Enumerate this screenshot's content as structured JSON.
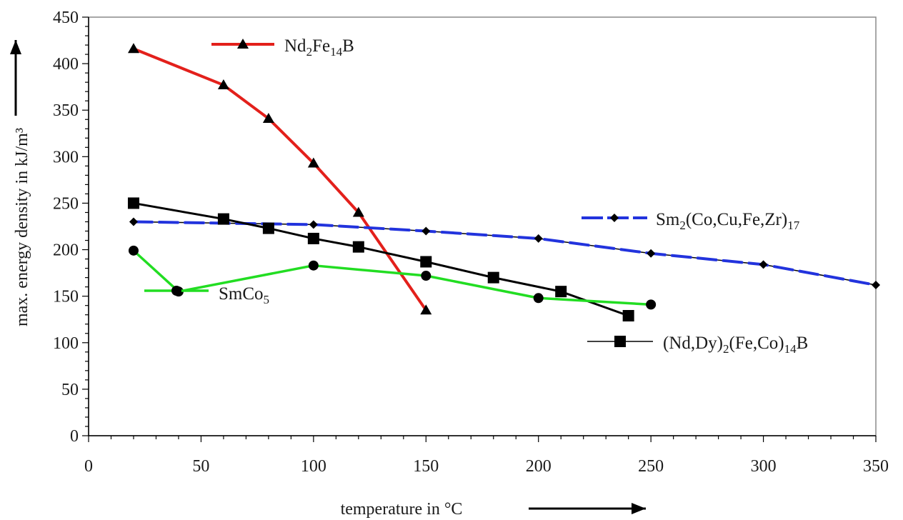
{
  "chart_data": {
    "type": "line",
    "xlabel": "temperature in °C",
    "ylabel": "max. energy density in kJ/m³",
    "xlim": [
      0,
      350
    ],
    "ylim": [
      0,
      450
    ],
    "xticks": [
      "0",
      "50",
      "100",
      "150",
      "200",
      "250",
      "300",
      "350"
    ],
    "yticks": [
      "0",
      "50",
      "100",
      "150",
      "200",
      "250",
      "300",
      "350",
      "400",
      "450"
    ],
    "grid": false,
    "series": [
      {
        "name": "Nd₂Fe₁₄B",
        "label_parts": [
          [
            "Nd",
            "base"
          ],
          [
            "2",
            "sub"
          ],
          [
            "Fe",
            "base"
          ],
          [
            "14",
            "sub"
          ],
          [
            "B",
            "base"
          ]
        ],
        "marker": "triangle",
        "color": "#e3201b",
        "x": [
          20,
          60,
          80,
          100,
          120,
          150
        ],
        "y": [
          416,
          377,
          341,
          293,
          240,
          135
        ]
      },
      {
        "name": "Sm₂(Co,Cu,Fe,Zr)₁₇",
        "label_parts": [
          [
            "Sm",
            "base"
          ],
          [
            "2",
            "sub"
          ],
          [
            "(Co,Cu,Fe,Zr)",
            "base"
          ],
          [
            "17",
            "sub"
          ]
        ],
        "marker": "diamond",
        "color": "#2233dd",
        "x": [
          20,
          100,
          150,
          200,
          250,
          300,
          350
        ],
        "y": [
          230,
          227,
          220,
          212,
          196,
          184,
          162
        ]
      },
      {
        "name": "(Nd,Dy)₂(Fe,Co)₁₄B",
        "label_parts": [
          [
            "(Nd,Dy)",
            "base"
          ],
          [
            "2",
            "sub"
          ],
          [
            "(Fe,Co)",
            "base"
          ],
          [
            "14",
            "sub"
          ],
          [
            "B",
            "base"
          ]
        ],
        "marker": "square",
        "color": "#000000",
        "x": [
          20,
          60,
          80,
          100,
          120,
          150,
          180,
          210,
          240
        ],
        "y": [
          250,
          233,
          223,
          212,
          203,
          187,
          170,
          155,
          129
        ]
      },
      {
        "name": "SmCo₅",
        "label_parts": [
          [
            "SmCo",
            "base"
          ],
          [
            "5",
            "sub"
          ]
        ],
        "marker": "circle",
        "color": "#22dd22",
        "x": [
          20,
          40,
          100,
          150,
          200,
          250
        ],
        "y": [
          199,
          155,
          183,
          172,
          148,
          141
        ]
      }
    ]
  }
}
